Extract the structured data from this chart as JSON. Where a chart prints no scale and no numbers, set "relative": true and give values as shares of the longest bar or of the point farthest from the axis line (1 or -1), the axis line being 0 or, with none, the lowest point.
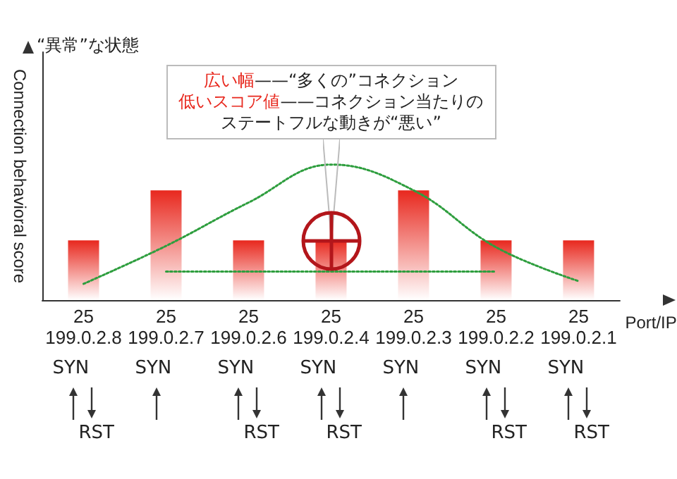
{
  "chart_data": {
    "type": "bar",
    "relative": true,
    "xlabel": "Port/IP",
    "ylabel": "Connection behavioral score",
    "categories": [
      "25\n199.0.2.8",
      "25\n199.0.2.7",
      "25\n199.0.2.6",
      "25\n199.0.2.4",
      "25\n199.0.2.3",
      "25\n199.0.2.2",
      "25\n199.0.2.1"
    ],
    "tick_labels": "x",
    "marker": "none",
    "line_style": "dotted",
    "series": [
      {
        "color": "#e8281e",
        "values": [
          0.44,
          0.81,
          0.44,
          0.44,
          0.81,
          0.44,
          0.44
        ]
      },
      {
        "type": "line",
        "color": "#2e9e3e",
        "values": [
          0.12,
          0.4,
          0.72,
          1,
          0.81,
          0.39,
          0.14
        ]
      },
      {
        "type": "line",
        "color": "#2e9e3e",
        "values": [
          null,
          0.21,
          0.21,
          0.21,
          0.21,
          0.21,
          null
        ]
      }
    ],
    "annotations": [
      "広い幅——“多くの”コネクション",
      "低いスコア値——コネクション当たりの",
      "ステートフルな動きが“悪い”",
      "“異常”な状態",
      "SYN",
      "SYN",
      "SYN",
      "SYN",
      "SYN",
      "SYN",
      "SYN",
      "RST",
      "RST",
      "RST",
      "RST",
      "RST"
    ]
  }
}
